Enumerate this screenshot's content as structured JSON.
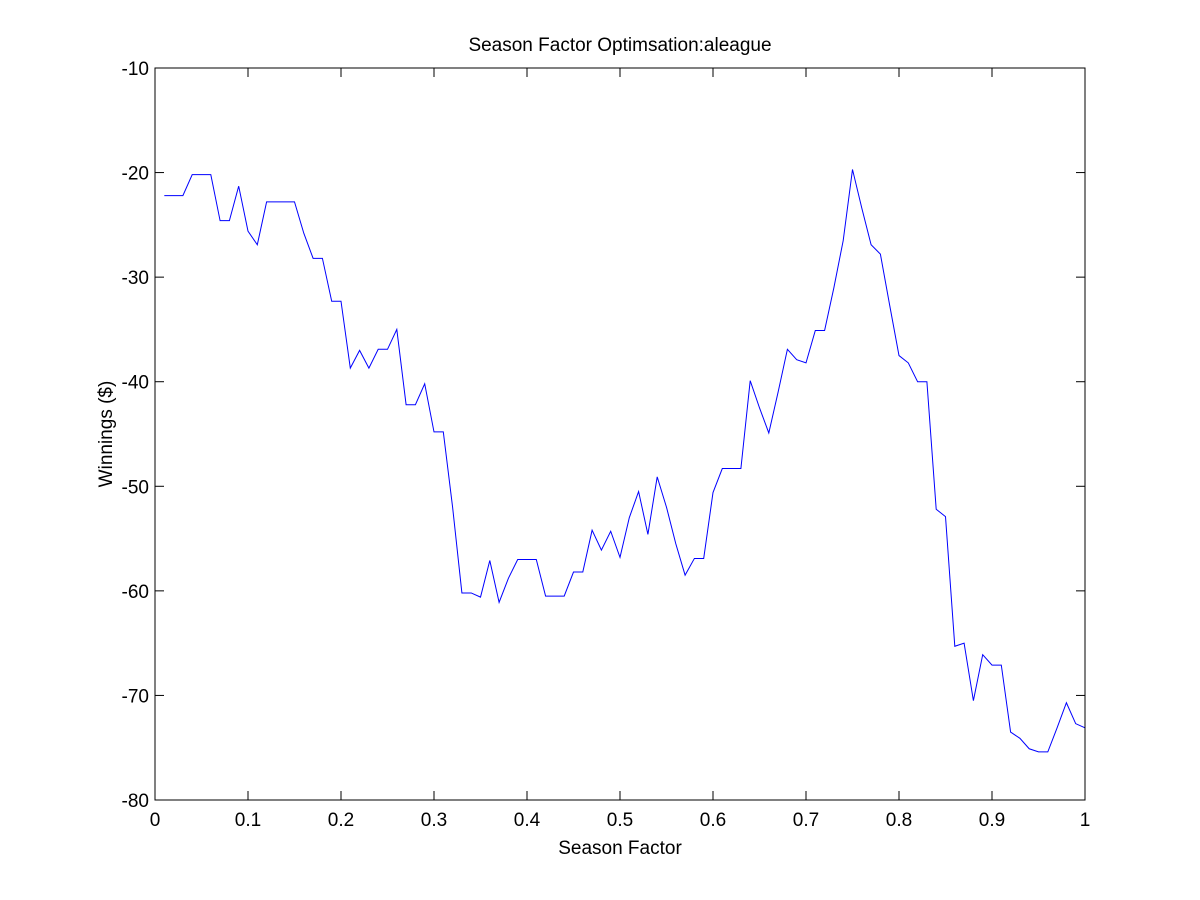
{
  "chart_data": {
    "type": "line",
    "title": "Season Factor Optimsation:aleague",
    "xlabel": "Season Factor",
    "ylabel": "Winnings ($)",
    "xlim": [
      0,
      1
    ],
    "ylim": [
      -80,
      -10
    ],
    "xticks": [
      "0",
      "0.1",
      "0.2",
      "0.3",
      "0.4",
      "0.5",
      "0.6",
      "0.7",
      "0.8",
      "0.9",
      "1"
    ],
    "yticks": [
      "-10",
      "-20",
      "-30",
      "-40",
      "-50",
      "-60",
      "-70",
      "-80"
    ],
    "grid": false,
    "colors": {
      "line": "#0000ff",
      "axes": "#000000",
      "background": "#ffffff"
    },
    "series": [
      {
        "x": [
          0.01,
          0.02,
          0.03,
          0.04,
          0.05,
          0.06,
          0.07,
          0.08,
          0.09,
          0.1,
          0.11,
          0.12,
          0.13,
          0.14,
          0.15,
          0.16,
          0.17,
          0.18,
          0.19,
          0.2,
          0.21,
          0.22,
          0.23,
          0.24,
          0.25,
          0.26,
          0.27,
          0.28,
          0.29,
          0.3,
          0.31,
          0.32,
          0.33,
          0.34,
          0.35,
          0.36,
          0.37,
          0.38,
          0.39,
          0.4,
          0.41,
          0.42,
          0.43,
          0.44,
          0.45,
          0.46,
          0.47,
          0.48,
          0.49,
          0.5,
          0.51,
          0.52,
          0.53,
          0.54,
          0.55,
          0.56,
          0.57,
          0.58,
          0.59,
          0.6,
          0.61,
          0.62,
          0.63,
          0.64,
          0.65,
          0.66,
          0.67,
          0.68,
          0.69,
          0.7,
          0.71,
          0.72,
          0.73,
          0.74,
          0.75,
          0.76,
          0.77,
          0.78,
          0.79,
          0.8,
          0.81,
          0.82,
          0.83,
          0.84,
          0.85,
          0.86,
          0.87,
          0.88,
          0.89,
          0.9,
          0.91,
          0.92,
          0.93,
          0.94,
          0.95,
          0.96,
          0.97,
          0.98,
          0.99,
          1.0
        ],
        "values": [
          -22.2,
          -22.2,
          -22.2,
          -20.2,
          -20.2,
          -20.2,
          -24.6,
          -24.6,
          -21.3,
          -25.6,
          -26.9,
          -22.8,
          -22.8,
          -22.8,
          -22.8,
          -25.8,
          -28.2,
          -28.2,
          -32.3,
          -32.3,
          -38.7,
          -37.0,
          -38.7,
          -36.9,
          -36.9,
          -35.0,
          -42.2,
          -42.2,
          -40.2,
          -44.8,
          -44.8,
          -52.0,
          -60.2,
          -60.2,
          -60.6,
          -57.1,
          -61.1,
          -58.8,
          -57.0,
          -57.0,
          -57.0,
          -60.5,
          -60.5,
          -60.5,
          -58.2,
          -58.2,
          -54.2,
          -56.1,
          -54.3,
          -56.8,
          -53.0,
          -50.5,
          -54.6,
          -49.1,
          -52.0,
          -55.5,
          -58.5,
          -56.9,
          -56.9,
          -50.6,
          -48.3,
          -48.3,
          -48.3,
          -39.9,
          -42.5,
          -44.9,
          -41.0,
          -36.9,
          -37.9,
          -38.2,
          -35.1,
          -35.1,
          -31.0,
          -26.5,
          -19.7,
          -23.4,
          -26.9,
          -27.8,
          -32.7,
          -37.5,
          -38.2,
          -40.0,
          -40.0,
          -52.2,
          -52.9,
          -65.3,
          -65.0,
          -70.5,
          -66.1,
          -67.1,
          -67.1,
          -73.5,
          -74.1,
          -75.1,
          -75.4,
          -75.4,
          -73.1,
          -70.7,
          -72.7,
          -73.1
        ]
      }
    ]
  }
}
